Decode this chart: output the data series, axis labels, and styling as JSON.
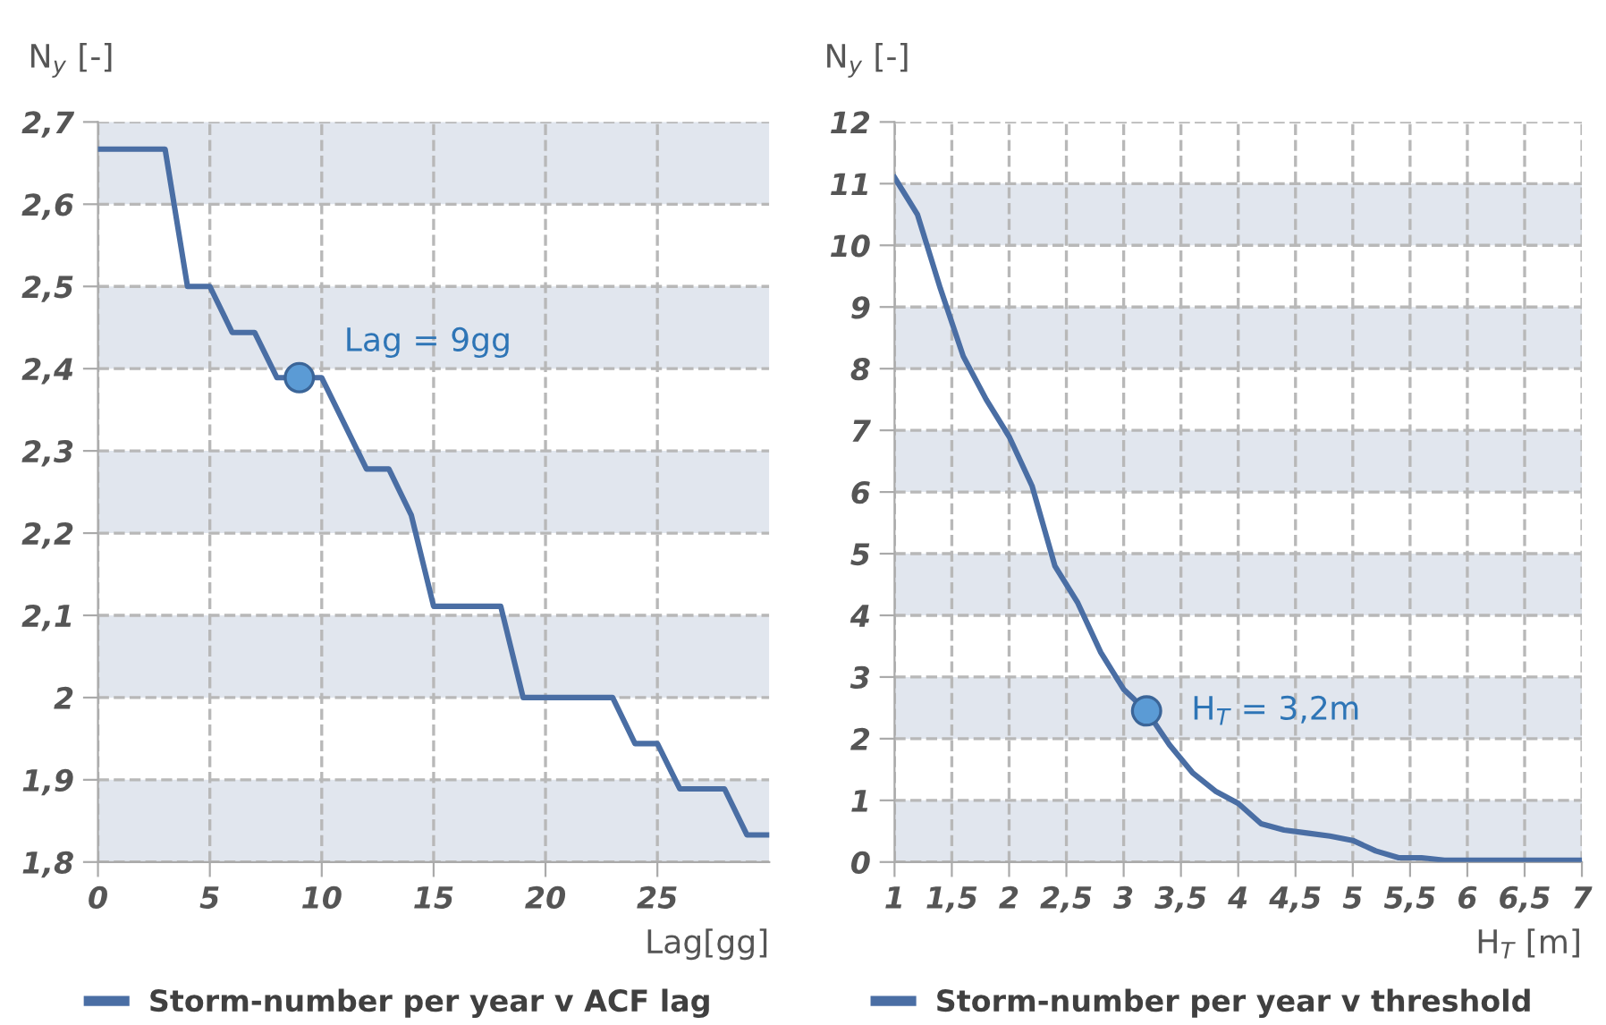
{
  "chart_data": [
    {
      "type": "line",
      "xlabel": "Lag[gg]",
      "ylabel": "N$_{y}$ [-]",
      "xlim": [
        0,
        30
      ],
      "xticks": [
        0,
        5,
        10,
        15,
        20,
        25
      ],
      "ylim": [
        1.8,
        2.7
      ],
      "yticks": [
        {
          "value": 1.8,
          "label": "1,8"
        },
        {
          "value": 1.9,
          "label": "1,9"
        },
        {
          "value": 2.0,
          "label": "2"
        },
        {
          "value": 2.1,
          "label": "2,1"
        },
        {
          "value": 2.2,
          "label": "2,2"
        },
        {
          "value": 2.3,
          "label": "2,3"
        },
        {
          "value": 2.4,
          "label": "2,4"
        },
        {
          "value": 2.5,
          "label": "2,5"
        },
        {
          "value": 2.6,
          "label": "2,6"
        },
        {
          "value": 2.7,
          "label": "2,7"
        }
      ],
      "grid": true,
      "legend": "bottom",
      "bands": [
        {
          "axis": "y",
          "from": 1.8,
          "to": 1.9,
          "color": "#e1e6ee"
        },
        {
          "axis": "y",
          "from": 2.0,
          "to": 2.1,
          "color": "#e1e6ee"
        },
        {
          "axis": "y",
          "from": 2.2,
          "to": 2.3,
          "color": "#e1e6ee"
        },
        {
          "axis": "y",
          "from": 2.4,
          "to": 2.5,
          "color": "#e1e6ee"
        },
        {
          "axis": "y",
          "from": 2.6,
          "to": 2.7,
          "color": "#e1e6ee"
        }
      ],
      "annotations": [
        {
          "text": "Lag = 9gg",
          "x": 9,
          "y": 2.389
        }
      ],
      "series": [
        {
          "name": "Storm-number per year v ACF lag",
          "color": "#4a6ea4",
          "x": [
            0,
            3,
            4,
            5,
            6,
            7,
            8,
            10,
            12,
            13,
            14,
            15,
            18,
            19,
            23,
            24,
            25,
            26,
            28,
            29,
            30
          ],
          "values": [
            2.667,
            2.667,
            2.5,
            2.5,
            2.444,
            2.444,
            2.389,
            2.389,
            2.278,
            2.278,
            2.222,
            2.111,
            2.111,
            2.0,
            2.0,
            1.944,
            1.944,
            1.889,
            1.889,
            1.833,
            1.833
          ]
        },
        {
          "type": "scatter",
          "color": "#5b9bd5",
          "marker": "circle",
          "x": [
            9
          ],
          "values": [
            2.389
          ]
        }
      ]
    },
    {
      "type": "line",
      "xlabel": "H$_{T}$ [m]",
      "ylabel": "N$_{y}$ [-]",
      "xlim": [
        1,
        7
      ],
      "xticks": [
        1,
        {
          "value": 1.5,
          "label": "1,5"
        },
        2,
        {
          "value": 2.5,
          "label": "2,5"
        },
        3,
        {
          "value": 3.5,
          "label": "3,5"
        },
        4,
        {
          "value": 4.5,
          "label": "4,5"
        },
        5,
        {
          "value": 5.5,
          "label": "5,5"
        },
        6,
        {
          "value": 6.5,
          "label": "6,5"
        },
        7
      ],
      "ylim": [
        0,
        12
      ],
      "yticks": [
        0,
        1,
        2,
        3,
        4,
        5,
        6,
        7,
        8,
        9,
        10,
        11,
        12
      ],
      "grid": true,
      "legend": "bottom",
      "bands": [
        {
          "axis": "y",
          "from": 0,
          "to": 1,
          "color": "#e1e6ee"
        },
        {
          "axis": "y",
          "from": 2,
          "to": 3,
          "color": "#e1e6ee"
        },
        {
          "axis": "y",
          "from": 4,
          "to": 5,
          "color": "#e1e6ee"
        },
        {
          "axis": "y",
          "from": 6,
          "to": 7,
          "color": "#e1e6ee"
        },
        {
          "axis": "y",
          "from": 8,
          "to": 9,
          "color": "#e1e6ee"
        },
        {
          "axis": "y",
          "from": 10,
          "to": 11,
          "color": "#e1e6ee"
        }
      ],
      "annotations": [
        {
          "text": "H$_{T}$ = 3,2m",
          "x": 3.2,
          "y": 2.45
        }
      ],
      "series": [
        {
          "name": "Storm-number per year v threshold",
          "color": "#4a6ea4",
          "x": [
            1,
            1.2,
            1.4,
            1.6,
            1.8,
            2.0,
            2.2,
            2.4,
            2.6,
            2.8,
            3.0,
            3.2,
            3.4,
            3.6,
            3.8,
            4.0,
            4.2,
            4.4,
            4.6,
            4.8,
            5.0,
            5.2,
            5.4,
            5.6,
            5.8,
            6.0,
            7.0
          ],
          "values": [
            11.1,
            10.5,
            9.3,
            8.2,
            7.5,
            6.9,
            6.1,
            4.8,
            4.2,
            3.4,
            2.8,
            2.45,
            1.9,
            1.45,
            1.15,
            0.95,
            0.62,
            0.52,
            0.47,
            0.42,
            0.35,
            0.18,
            0.07,
            0.07,
            0.03,
            0.03,
            0.03
          ]
        },
        {
          "type": "scatter",
          "color": "#5b9bd5",
          "marker": "circle",
          "x": [
            3.2
          ],
          "values": [
            2.45
          ]
        }
      ]
    }
  ]
}
